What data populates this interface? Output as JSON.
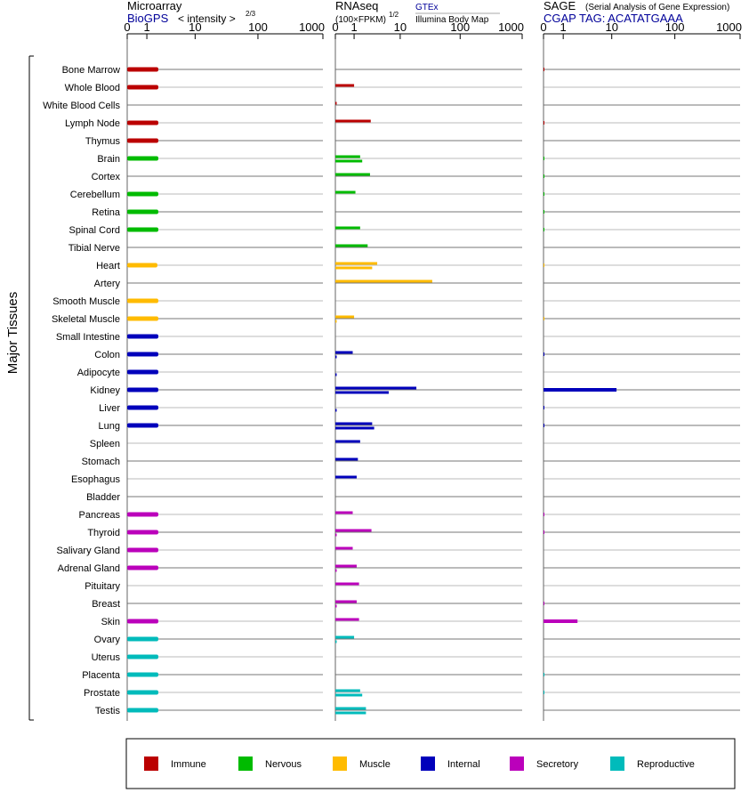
{
  "y_axis_title": "Major Tissues",
  "panels": [
    {
      "id": "microarray",
      "title": "Microarray",
      "subtitle": "BioGPS",
      "subtitle_note": "< intensity >",
      "subtitle_exp": "2/3",
      "ticks": [
        "0",
        "1",
        "10",
        "100",
        "1000"
      ]
    },
    {
      "id": "rnaseq",
      "title": "RNAseq",
      "title_note": "(100×FPKM)",
      "title_exp": "1/2",
      "source_top": "GTEx",
      "source_bottom": "Illumina Body Map",
      "ticks": [
        "0",
        "1",
        "10",
        "100",
        "1000"
      ]
    },
    {
      "id": "sage",
      "title": "SAGE",
      "title_note": "(Serial Analysis of Gene Expression)",
      "subtitle": "CGAP  TAG: ACATATGAAA",
      "ticks": [
        "0",
        "1",
        "10",
        "100",
        "1000"
      ]
    }
  ],
  "legend": [
    {
      "name": "Immune",
      "color": "#bb0000"
    },
    {
      "name": "Nervous",
      "color": "#00bb00"
    },
    {
      "name": "Muscle",
      "color": "#ffbb00"
    },
    {
      "name": "Internal",
      "color": "#0000bb"
    },
    {
      "name": "Secretory",
      "color": "#bb00bb"
    },
    {
      "name": "Reproductive",
      "color": "#00bbbb"
    }
  ],
  "chart_data": {
    "type": "bar",
    "orientation": "horizontal",
    "scale": "log (value+1)",
    "xlim": [
      0,
      1000
    ],
    "categories": [
      "Bone Marrow",
      "Whole Blood",
      "White Blood Cells",
      "Lymph Node",
      "Thymus",
      "Brain",
      "Cortex",
      "Cerebellum",
      "Retina",
      "Spinal Cord",
      "Tibial Nerve",
      "Heart",
      "Artery",
      "Smooth Muscle",
      "Skeletal Muscle",
      "Small Intestine",
      "Colon",
      "Adipocyte",
      "Kidney",
      "Liver",
      "Lung",
      "Spleen",
      "Stomach",
      "Esophagus",
      "Bladder",
      "Pancreas",
      "Thyroid",
      "Salivary Gland",
      "Adrenal Gland",
      "Pituitary",
      "Breast",
      "Skin",
      "Ovary",
      "Uterus",
      "Placenta",
      "Prostate",
      "Testis"
    ],
    "category_groups": [
      "Immune",
      "Immune",
      "Immune",
      "Immune",
      "Immune",
      "Nervous",
      "Nervous",
      "Nervous",
      "Nervous",
      "Nervous",
      "Nervous",
      "Muscle",
      "Muscle",
      "Muscle",
      "Muscle",
      "Internal",
      "Internal",
      "Internal",
      "Internal",
      "Internal",
      "Internal",
      "Internal",
      "Internal",
      "Internal",
      "Internal",
      "Secretory",
      "Secretory",
      "Secretory",
      "Secretory",
      "Secretory",
      "Secretory",
      "Secretory",
      "Reproductive",
      "Reproductive",
      "Reproductive",
      "Reproductive",
      "Reproductive"
    ],
    "series": [
      {
        "name": "Microarray",
        "values": [
          2.0,
          2.0,
          null,
          2.0,
          2.0,
          2.0,
          null,
          2.0,
          2.0,
          2.0,
          null,
          1.9,
          null,
          2.0,
          2.0,
          2.0,
          2.0,
          2.0,
          2.0,
          2.0,
          2.0,
          null,
          null,
          null,
          null,
          2.0,
          2.0,
          2.0,
          2.0,
          null,
          null,
          2.0,
          2.0,
          2.0,
          2.0,
          2.0,
          2.0
        ]
      },
      {
        "name": "RNAseq GTEx",
        "values": [
          null,
          1.0,
          0.05,
          2.7,
          null,
          1.5,
          2.6,
          1.1,
          null,
          1.5,
          2.3,
          3.7,
          35,
          null,
          1.0,
          null,
          0.9,
          null,
          19,
          null,
          2.9,
          1.5,
          1.3,
          1.2,
          null,
          0.9,
          2.8,
          0.9,
          1.2,
          1.4,
          1.2,
          1.4,
          1.0,
          null,
          null,
          1.5,
          2.1
        ]
      },
      {
        "name": "RNAseq Illumina Body Map",
        "values": [
          null,
          null,
          null,
          null,
          null,
          1.7,
          null,
          null,
          null,
          null,
          null,
          2.9,
          null,
          null,
          0.05,
          null,
          0.05,
          0.05,
          6.2,
          0.05,
          3.2,
          null,
          null,
          null,
          null,
          null,
          0.05,
          null,
          0.05,
          null,
          0.05,
          null,
          0.05,
          null,
          null,
          1.7,
          2.1
        ]
      },
      {
        "name": "SAGE",
        "values": [
          0.02,
          null,
          null,
          0.02,
          null,
          0.02,
          0.02,
          0.02,
          0.02,
          0.02,
          null,
          0.01,
          null,
          null,
          0.01,
          null,
          0.03,
          null,
          12,
          0.03,
          0.03,
          null,
          null,
          null,
          null,
          0.02,
          0.02,
          null,
          null,
          null,
          0.02,
          2.3,
          null,
          null,
          0.02,
          0.02,
          null
        ]
      }
    ]
  }
}
